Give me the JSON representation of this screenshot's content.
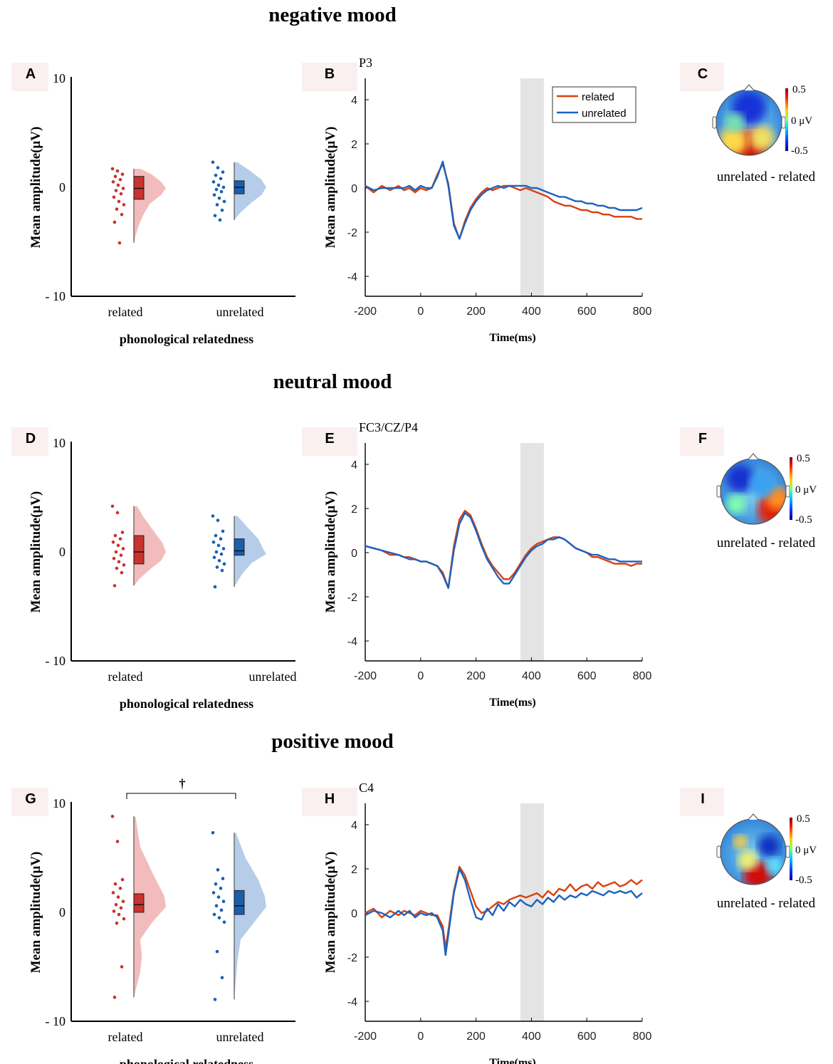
{
  "colors": {
    "related": "#c8332e",
    "related_light": "#f2bcbc",
    "unrelated": "#1a5fae",
    "unrelated_light": "#b5cde8",
    "erp_related": "#d9400f",
    "erp_unrelated": "#1b62c0",
    "window": "#e4e4e4",
    "panel_letter_bg": "#fbf0f0"
  },
  "legend": {
    "related": "related",
    "unrelated": "unrelated"
  },
  "shared": {
    "raincloud_ylabel": "Mean amplitude(μV)",
    "raincloud_xlabel": "phonological  relatedness",
    "raincloud_yticks": [
      "10",
      "0",
      "- 10"
    ],
    "erp_ylabel": "Mean amplitude(μV)",
    "erp_xlabel": "Time(ms)",
    "topo_scale": [
      "0.5",
      "0 μV",
      "-0.5"
    ]
  },
  "rows": [
    {
      "title": "negative mood",
      "raincloud": {
        "letter": "A",
        "categories": [
          "related",
          "unrelated"
        ],
        "significance": null,
        "groups": [
          {
            "name": "related",
            "points": [
              1.7,
              1.5,
              1.2,
              1.0,
              0.7,
              0.5,
              0.2,
              -0.1,
              -0.3,
              -0.6,
              -0.9,
              -1.3,
              -1.6,
              -2.0,
              -2.5,
              -3.2,
              -5.1
            ],
            "q1": -1.1,
            "median": -0.1,
            "q3": 1.0,
            "min": -3.4,
            "max": 1.7,
            "density": [
              [
                1.7,
                0.2
              ],
              [
                1.2,
                0.55
              ],
              [
                0.5,
                0.85
              ],
              [
                -0.1,
                1.0
              ],
              [
                -0.7,
                0.85
              ],
              [
                -1.5,
                0.5
              ],
              [
                -2.5,
                0.3
              ],
              [
                -3.5,
                0.15
              ],
              [
                -4.4,
                0.06
              ],
              [
                -5.1,
                0
              ]
            ]
          },
          {
            "name": "unrelated",
            "points": [
              2.3,
              1.8,
              1.4,
              1.1,
              0.8,
              0.5,
              0.2,
              0.0,
              -0.2,
              -0.4,
              -0.7,
              -1.0,
              -1.3,
              -1.6,
              -2.1,
              -2.6,
              -3.0
            ],
            "q1": -0.6,
            "median": 0.0,
            "q3": 0.6,
            "min": -2.8,
            "max": 2.3,
            "density": [
              [
                2.3,
                0.1
              ],
              [
                1.5,
                0.5
              ],
              [
                0.7,
                0.85
              ],
              [
                0.0,
                1.0
              ],
              [
                -0.7,
                0.85
              ],
              [
                -1.5,
                0.5
              ],
              [
                -2.3,
                0.2
              ],
              [
                -3.0,
                0
              ]
            ]
          }
        ]
      },
      "erp": {
        "letter": "B",
        "label": "P3",
        "show_legend": true,
        "window": [
          360,
          445
        ],
        "x": [
          -200,
          -170,
          -140,
          -110,
          -80,
          -60,
          -40,
          -20,
          0,
          20,
          40,
          60,
          80,
          100,
          120,
          140,
          160,
          180,
          200,
          220,
          240,
          260,
          280,
          300,
          320,
          340,
          360,
          380,
          400,
          420,
          440,
          460,
          480,
          500,
          520,
          540,
          560,
          580,
          600,
          620,
          640,
          660,
          680,
          700,
          720,
          740,
          760,
          780,
          800
        ],
        "related": [
          0.1,
          -0.2,
          0.1,
          -0.1,
          0.1,
          -0.1,
          0.0,
          -0.2,
          0.0,
          -0.1,
          0.0,
          0.6,
          1.1,
          0.2,
          -1.6,
          -2.3,
          -1.5,
          -0.9,
          -0.5,
          -0.2,
          0.0,
          -0.1,
          0.0,
          0.1,
          0.1,
          0.0,
          -0.1,
          0.0,
          -0.1,
          -0.2,
          -0.3,
          -0.4,
          -0.6,
          -0.7,
          -0.8,
          -0.8,
          -0.9,
          -1.0,
          -1.0,
          -1.1,
          -1.1,
          -1.2,
          -1.2,
          -1.3,
          -1.3,
          -1.3,
          -1.3,
          -1.4,
          -1.4
        ],
        "unrelated": [
          0.1,
          -0.1,
          0.0,
          0.0,
          0.0,
          0.0,
          0.1,
          -0.1,
          0.1,
          0.0,
          0.0,
          0.5,
          1.2,
          0.1,
          -1.7,
          -2.3,
          -1.6,
          -1.0,
          -0.6,
          -0.3,
          -0.1,
          0.0,
          0.1,
          0.0,
          0.1,
          0.1,
          0.1,
          0.1,
          0.0,
          0.0,
          -0.1,
          -0.2,
          -0.3,
          -0.4,
          -0.4,
          -0.5,
          -0.6,
          -0.6,
          -0.7,
          -0.7,
          -0.8,
          -0.8,
          -0.9,
          -0.9,
          -1.0,
          -1.0,
          -1.0,
          -1.0,
          -0.9
        ],
        "xticks": [
          "-200",
          "0",
          "200",
          "400",
          "600",
          "800"
        ],
        "yticks": [
          "4",
          "2",
          "0",
          "-2",
          "-4"
        ]
      },
      "topo": {
        "letter": "C",
        "caption": "unrelated   - related"
      }
    },
    {
      "title": "neutral  mood",
      "raincloud": {
        "letter": "D",
        "categories": [
          "related",
          "unrelated"
        ],
        "significance": null,
        "groups": [
          {
            "name": "related",
            "points": [
              4.2,
              3.6,
              1.8,
              1.5,
              1.2,
              0.9,
              0.6,
              0.3,
              0.0,
              -0.3,
              -0.6,
              -0.9,
              -1.2,
              -1.5,
              -1.9,
              -3.1
            ],
            "q1": -1.1,
            "median": 0.0,
            "q3": 1.5,
            "min": -3.0,
            "max": 4.2,
            "density": [
              [
                4.2,
                0.1
              ],
              [
                3.2,
                0.3
              ],
              [
                2.0,
                0.6
              ],
              [
                0.8,
                0.9
              ],
              [
                0.0,
                1.0
              ],
              [
                -0.8,
                0.85
              ],
              [
                -1.6,
                0.5
              ],
              [
                -2.4,
                0.2
              ],
              [
                -3.1,
                0
              ]
            ]
          },
          {
            "name": "unrelated",
            "points": [
              3.3,
              2.9,
              1.9,
              1.5,
              1.2,
              0.9,
              0.6,
              0.3,
              0.0,
              -0.2,
              -0.5,
              -0.8,
              -1.1,
              -1.4,
              -1.7,
              -3.2
            ],
            "q1": -0.3,
            "median": 0.1,
            "q3": 1.2,
            "min": -1.7,
            "max": 3.3,
            "density": [
              [
                3.3,
                0.1
              ],
              [
                2.3,
                0.4
              ],
              [
                1.2,
                0.75
              ],
              [
                0.3,
                0.9
              ],
              [
                -0.2,
                1.0
              ],
              [
                -1.0,
                0.55
              ],
              [
                -2.0,
                0.25
              ],
              [
                -3.2,
                0
              ]
            ]
          }
        ]
      },
      "erp": {
        "letter": "E",
        "label": "FC3/CZ/P4",
        "show_legend": false,
        "window": [
          360,
          445
        ],
        "x": [
          -200,
          -170,
          -140,
          -110,
          -80,
          -60,
          -40,
          -20,
          0,
          20,
          40,
          60,
          80,
          100,
          120,
          140,
          160,
          180,
          200,
          220,
          240,
          260,
          280,
          300,
          320,
          340,
          360,
          380,
          400,
          420,
          440,
          460,
          480,
          500,
          520,
          540,
          560,
          580,
          600,
          620,
          640,
          660,
          680,
          700,
          720,
          740,
          760,
          780,
          800
        ],
        "related": [
          0.3,
          0.2,
          0.1,
          -0.1,
          -0.1,
          -0.2,
          -0.2,
          -0.3,
          -0.4,
          -0.4,
          -0.5,
          -0.6,
          -0.9,
          -1.6,
          0.3,
          1.5,
          1.9,
          1.7,
          1.1,
          0.4,
          -0.2,
          -0.6,
          -0.9,
          -1.2,
          -1.2,
          -0.9,
          -0.5,
          -0.1,
          0.2,
          0.4,
          0.5,
          0.6,
          0.7,
          0.7,
          0.6,
          0.4,
          0.2,
          0.1,
          0.0,
          -0.2,
          -0.2,
          -0.3,
          -0.4,
          -0.5,
          -0.5,
          -0.5,
          -0.6,
          -0.5,
          -0.5
        ],
        "unrelated": [
          0.3,
          0.2,
          0.1,
          0.0,
          -0.1,
          -0.2,
          -0.3,
          -0.3,
          -0.4,
          -0.4,
          -0.5,
          -0.6,
          -1.0,
          -1.6,
          0.1,
          1.3,
          1.8,
          1.6,
          1.0,
          0.3,
          -0.3,
          -0.7,
          -1.1,
          -1.4,
          -1.4,
          -1.0,
          -0.6,
          -0.2,
          0.1,
          0.3,
          0.4,
          0.6,
          0.6,
          0.7,
          0.6,
          0.4,
          0.2,
          0.1,
          0.0,
          -0.1,
          -0.1,
          -0.2,
          -0.3,
          -0.3,
          -0.4,
          -0.4,
          -0.4,
          -0.4,
          -0.4
        ],
        "xticks": [
          "-200",
          "0",
          "200",
          "400",
          "600",
          "800"
        ],
        "yticks": [
          "4",
          "2",
          "0",
          "-2",
          "-4"
        ]
      },
      "topo": {
        "letter": "F",
        "caption": "unrelated  - related"
      }
    },
    {
      "title": "positive   mood",
      "raincloud": {
        "letter": "G",
        "categories": [
          "related",
          "unrelated"
        ],
        "significance": "†",
        "groups": [
          {
            "name": "related",
            "points": [
              8.8,
              6.5,
              3.0,
              2.6,
              2.2,
              1.8,
              1.4,
              1.0,
              0.7,
              0.4,
              0.1,
              -0.2,
              -0.6,
              -1.0,
              -5.0,
              -7.8
            ],
            "q1": 0.0,
            "median": 0.7,
            "q3": 1.7,
            "min": -3.5,
            "max": 2.8,
            "density": [
              [
                8.8,
                0.05
              ],
              [
                6.0,
                0.2
              ],
              [
                3.5,
                0.6
              ],
              [
                1.5,
                0.95
              ],
              [
                0.5,
                1.0
              ],
              [
                -1.0,
                0.55
              ],
              [
                -2.5,
                0.2
              ],
              [
                -4.0,
                0.25
              ],
              [
                -5.5,
                0.2
              ],
              [
                -7.8,
                0
              ]
            ]
          },
          {
            "name": "unrelated",
            "points": [
              7.3,
              3.9,
              3.1,
              2.6,
              2.2,
              1.8,
              1.4,
              1.0,
              0.6,
              0.2,
              -0.2,
              -0.5,
              -0.9,
              -3.6,
              -6.0,
              -8.0
            ],
            "q1": -0.2,
            "median": 0.6,
            "q3": 2.0,
            "min": -3.7,
            "max": 3.9,
            "density": [
              [
                7.3,
                0.05
              ],
              [
                5.0,
                0.35
              ],
              [
                3.0,
                0.75
              ],
              [
                1.5,
                0.95
              ],
              [
                0.5,
                1.0
              ],
              [
                -1.0,
                0.6
              ],
              [
                -2.5,
                0.2
              ],
              [
                -4.5,
                0.1
              ],
              [
                -8.0,
                0
              ]
            ]
          }
        ]
      },
      "erp": {
        "letter": "H",
        "label": "C4",
        "show_legend": false,
        "window": [
          360,
          445
        ],
        "x": [
          -200,
          -170,
          -140,
          -110,
          -80,
          -60,
          -40,
          -20,
          0,
          20,
          40,
          60,
          80,
          90,
          100,
          120,
          140,
          160,
          180,
          200,
          220,
          240,
          260,
          280,
          300,
          320,
          340,
          360,
          380,
          400,
          420,
          440,
          460,
          480,
          500,
          520,
          540,
          560,
          580,
          600,
          620,
          640,
          660,
          680,
          700,
          720,
          740,
          760,
          780,
          800
        ],
        "related": [
          0.0,
          0.2,
          -0.2,
          0.1,
          -0.1,
          0.1,
          0.0,
          -0.1,
          0.1,
          0.0,
          -0.1,
          -0.1,
          -0.6,
          -1.6,
          -0.8,
          1.0,
          2.1,
          1.7,
          1.0,
          0.3,
          0.0,
          0.1,
          0.3,
          0.5,
          0.4,
          0.6,
          0.7,
          0.8,
          0.7,
          0.8,
          0.9,
          0.7,
          1.0,
          0.8,
          1.1,
          1.0,
          1.3,
          1.0,
          1.2,
          1.3,
          1.1,
          1.4,
          1.2,
          1.3,
          1.4,
          1.2,
          1.3,
          1.5,
          1.3,
          1.5
        ],
        "unrelated": [
          -0.1,
          0.1,
          0.0,
          -0.2,
          0.1,
          -0.1,
          0.1,
          -0.2,
          0.0,
          -0.1,
          0.0,
          -0.2,
          -0.8,
          -1.9,
          -1.0,
          0.9,
          2.0,
          1.5,
          0.6,
          -0.2,
          -0.3,
          0.2,
          -0.1,
          0.4,
          0.1,
          0.5,
          0.3,
          0.6,
          0.4,
          0.3,
          0.6,
          0.4,
          0.7,
          0.5,
          0.8,
          0.6,
          0.8,
          0.7,
          0.9,
          0.8,
          1.0,
          0.9,
          0.8,
          1.0,
          0.9,
          1.0,
          0.9,
          1.0,
          0.7,
          0.9
        ],
        "xticks": [
          "-200",
          "0",
          "200",
          "400",
          "600",
          "800"
        ],
        "yticks": [
          "4",
          "2",
          "0",
          "-2",
          "-4"
        ]
      },
      "topo": {
        "letter": "I",
        "caption": "unrelated  - related"
      }
    }
  ]
}
